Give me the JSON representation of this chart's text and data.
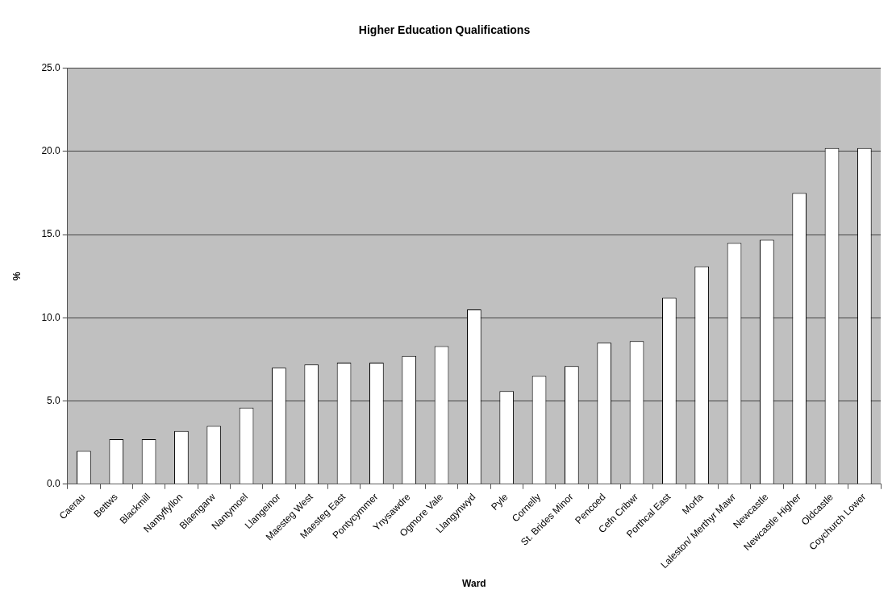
{
  "chart_data": {
    "type": "bar",
    "title": "Higher Education Qualifications",
    "xlabel": "Ward",
    "ylabel": "%",
    "categories": [
      "Caerau",
      "Bettws",
      "Blackmill",
      "Nantyffyllon",
      "Blaengarw",
      "Nantymoel",
      "Llangeinor",
      "Maesteg West",
      "Maesteg East",
      "Pontycymmer",
      "Ynysawdre",
      "Ogmore Vale",
      "Llangynwyd",
      "Pyle",
      "Cornelly",
      "St. Brides Minor",
      "Pencoed",
      "Cefn Cribwr",
      "Porthcal East",
      "Morfa",
      "Laleston/ Merthyr Mawr",
      "Newcastle",
      "Newcastle Higher",
      "Oldcastle",
      "Coychurch Lower"
    ],
    "values": [
      2.0,
      2.7,
      2.7,
      3.2,
      3.5,
      4.6,
      7.0,
      7.2,
      7.3,
      7.3,
      7.7,
      8.3,
      10.5,
      5.6,
      6.5,
      7.1,
      8.5,
      8.6,
      11.2,
      13.1,
      14.5,
      14.7,
      17.5,
      20.2,
      20.2
    ],
    "color": "#ffffff",
    "ylim": [
      0,
      25
    ],
    "yticks": [
      {
        "value": 0,
        "label": "0.0"
      },
      {
        "value": 5,
        "label": "5.0"
      },
      {
        "value": 10,
        "label": "10.0"
      },
      {
        "value": 15,
        "label": "15.0"
      },
      {
        "value": 20,
        "label": "20.0"
      },
      {
        "value": 25,
        "label": "25.0"
      }
    ],
    "grid": "y",
    "legend": false
  }
}
